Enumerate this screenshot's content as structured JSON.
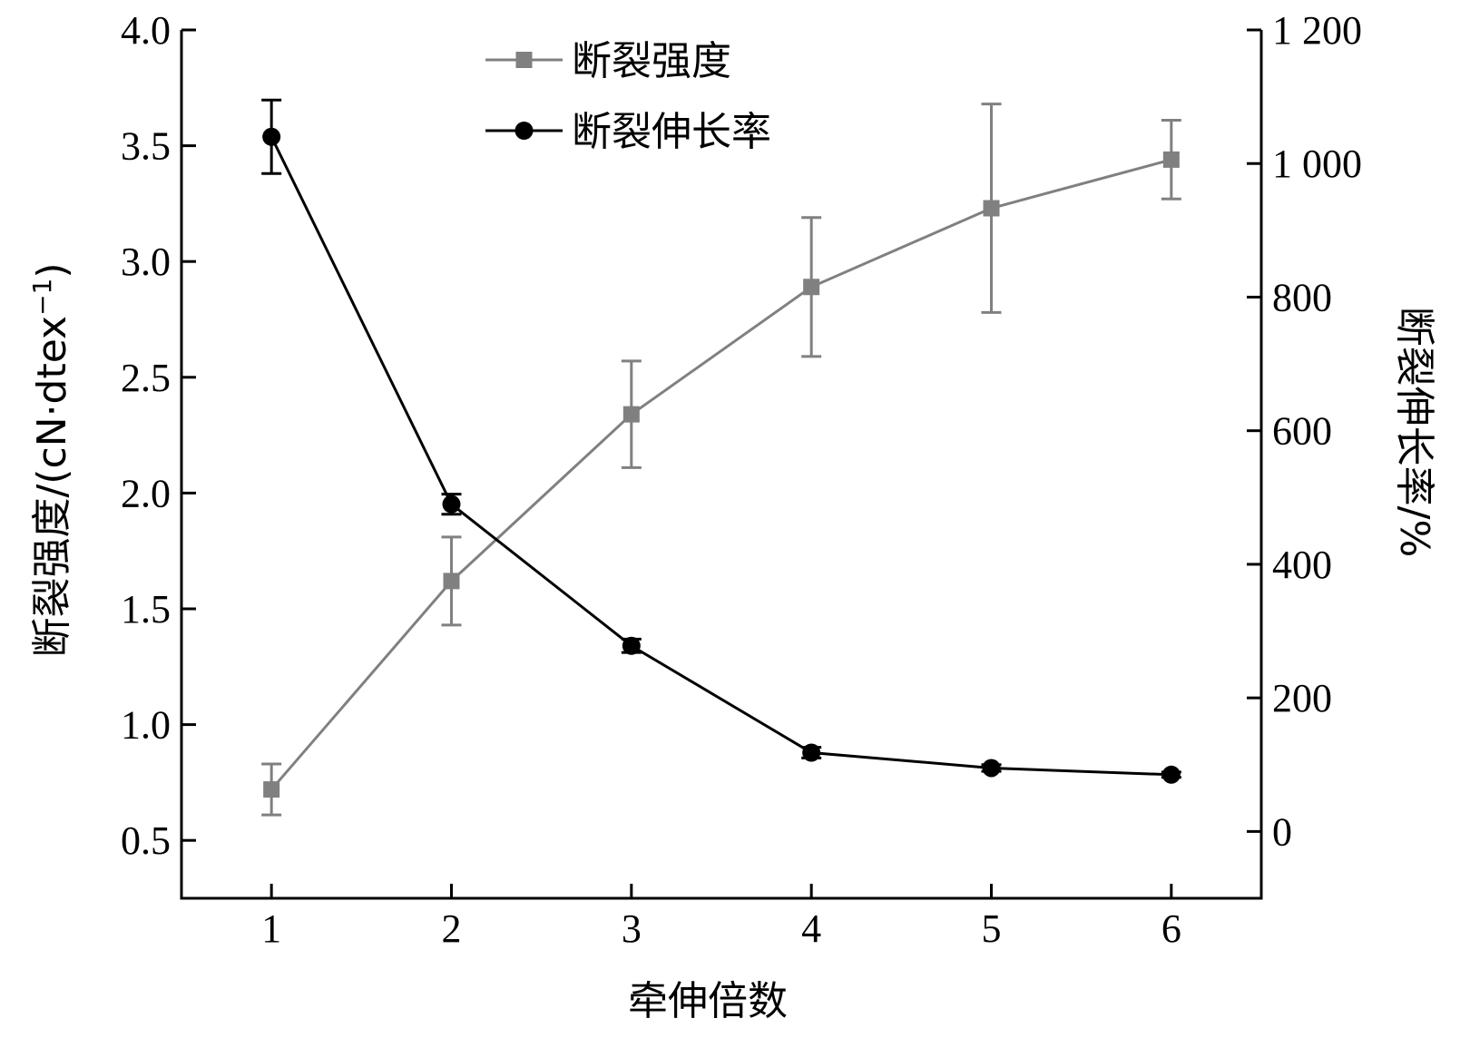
{
  "chart_data": {
    "type": "line",
    "xlabel": "牵伸倍数",
    "x": [
      1,
      2,
      3,
      4,
      5,
      6
    ],
    "x_ticks": [
      "1",
      "2",
      "3",
      "4",
      "5",
      "6"
    ],
    "xlim": [
      0.5,
      6.5
    ],
    "y_left": {
      "label": "断裂强度/(cN·dtex",
      "label_sup": "−1",
      "label_close": ")",
      "ylim": [
        0.25,
        4.0
      ],
      "ticks": [
        "0.5",
        "1.0",
        "1.5",
        "2.0",
        "2.5",
        "3.0",
        "3.5",
        "4.0"
      ]
    },
    "y_right": {
      "label": "断裂伸长率/%",
      "ylim": [
        -100,
        1200
      ],
      "ticks": [
        "0",
        "200",
        "400",
        "600",
        "800",
        "1 000",
        "1 200"
      ]
    },
    "series": [
      {
        "name": "断裂强度",
        "axis": "left",
        "marker": "square",
        "color": "#808080",
        "values": [
          0.72,
          1.62,
          2.34,
          2.89,
          3.23,
          3.44
        ],
        "error": [
          0.11,
          0.19,
          0.23,
          0.3,
          0.45,
          0.17
        ]
      },
      {
        "name": "断裂伸长率",
        "axis": "right",
        "marker": "circle",
        "color": "#000000",
        "values": [
          1040,
          490,
          278,
          118,
          95,
          85
        ],
        "error": [
          55,
          15,
          10,
          8,
          5,
          4
        ]
      }
    ],
    "legend_position": "top-center",
    "grid": false
  }
}
